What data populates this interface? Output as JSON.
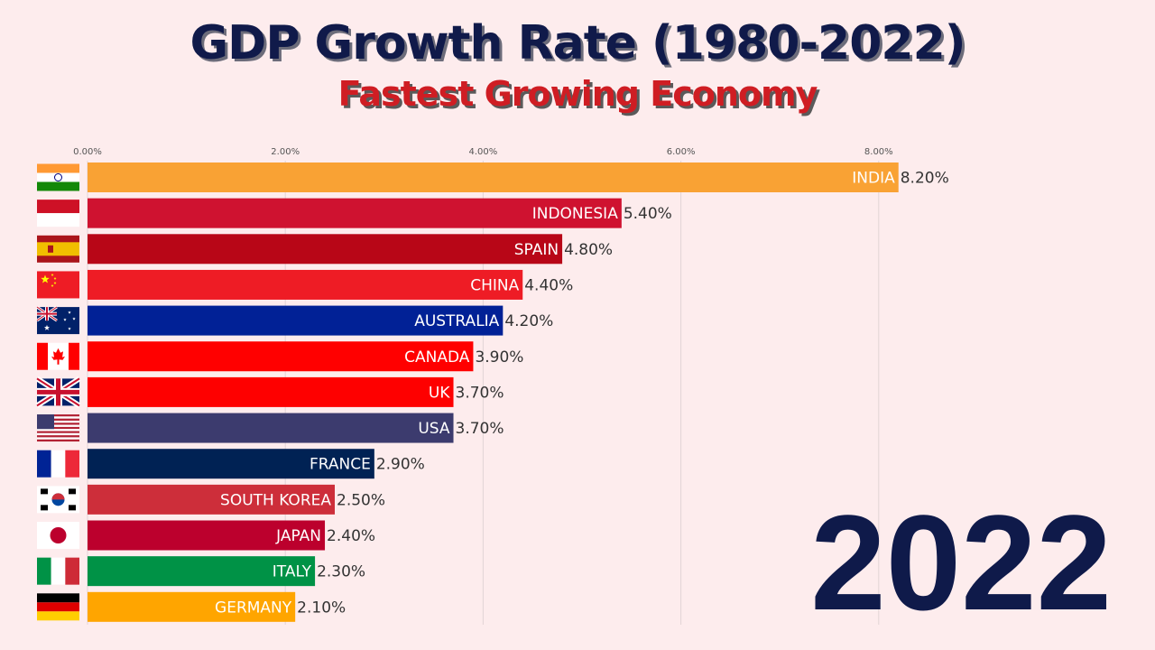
{
  "header": {
    "title": "GDP Growth Rate (1980-2022)",
    "subtitle": "Fastest Growing Economy"
  },
  "year_label": "2022",
  "colors": {
    "background": "#fdeced",
    "title": "#101a4a",
    "subtitle": "#cf1d23",
    "gridline": "#e2d4d6",
    "tick_text": "#555555",
    "value_text": "#333333"
  },
  "chart_data": {
    "type": "bar",
    "orientation": "horizontal",
    "title": "GDP Growth Rate (1980-2022)",
    "subtitle": "Fastest Growing Economy",
    "xlim": [
      0,
      8.2
    ],
    "xticks": [
      0,
      2,
      4,
      6,
      8
    ],
    "xtick_labels": [
      "0.00%",
      "2.00%",
      "4.00%",
      "6.00%",
      "8.00%"
    ],
    "grid": true,
    "bars": [
      {
        "country": "INDIA",
        "value": 8.2,
        "label": "8.20%",
        "color": "#f9a234",
        "flag": "india-flag-icon"
      },
      {
        "country": "INDONESIA",
        "value": 5.4,
        "label": "5.40%",
        "color": "#cf1230",
        "flag": "indonesia-flag-icon"
      },
      {
        "country": "SPAIN",
        "value": 4.8,
        "label": "4.80%",
        "color": "#b80617",
        "flag": "spain-flag-icon"
      },
      {
        "country": "CHINA",
        "value": 4.4,
        "label": "4.40%",
        "color": "#ee1c25",
        "flag": "china-flag-icon"
      },
      {
        "country": "AUSTRALIA",
        "value": 4.2,
        "label": "4.20%",
        "color": "#012196",
        "flag": "australia-flag-icon"
      },
      {
        "country": "CANADA",
        "value": 3.9,
        "label": "3.90%",
        "color": "#ff0000",
        "flag": "canada-flag-icon"
      },
      {
        "country": "UK",
        "value": 3.7,
        "label": "3.70%",
        "color": "#fe0000",
        "flag": "uk-flag-icon"
      },
      {
        "country": "USA",
        "value": 3.7,
        "label": "3.70%",
        "color": "#3c3b6e",
        "flag": "usa-flag-icon"
      },
      {
        "country": "FRANCE",
        "value": 2.9,
        "label": "2.90%",
        "color": "#002254",
        "flag": "france-flag-icon"
      },
      {
        "country": "SOUTH KOREA",
        "value": 2.5,
        "label": "2.50%",
        "color": "#cd2e3a",
        "flag": "south-korea-flag-icon"
      },
      {
        "country": "JAPAN",
        "value": 2.4,
        "label": "2.40%",
        "color": "#bc002d",
        "flag": "japan-flag-icon"
      },
      {
        "country": "ITALY",
        "value": 2.3,
        "label": "2.30%",
        "color": "#009246",
        "flag": "italy-flag-icon"
      },
      {
        "country": "GERMANY",
        "value": 2.1,
        "label": "2.10%",
        "color": "#ffa500",
        "flag": "germany-flag-icon"
      }
    ]
  }
}
